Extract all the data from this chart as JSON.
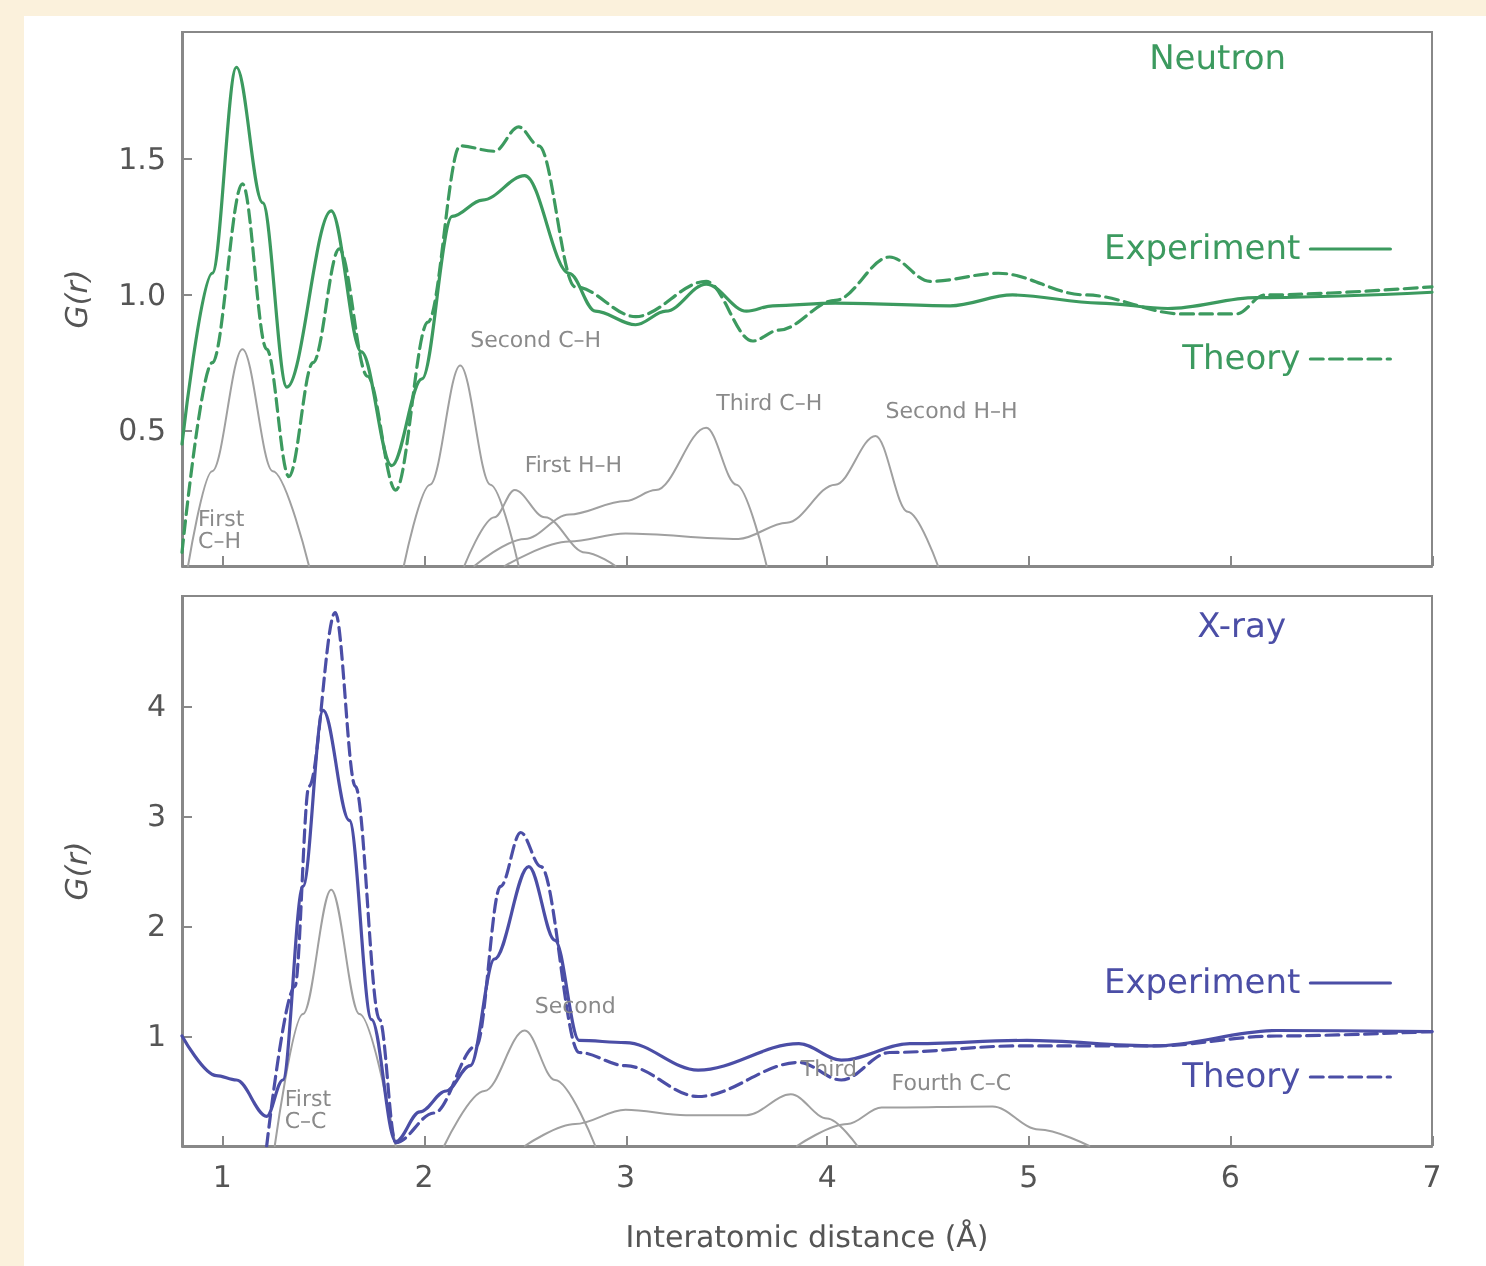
{
  "chart_data": [
    {
      "type": "line",
      "title": "Neutron",
      "ylabel": "G(r)",
      "xlim": [
        0.8,
        7
      ],
      "xticks": [
        1,
        2,
        3,
        4,
        5,
        6,
        7
      ],
      "ylim": [
        0,
        1.97
      ],
      "yticks": [
        0.5,
        {
          "value": 1,
          "label": "1.0"
        },
        1.5
      ],
      "tick_labels": "y",
      "grid": false,
      "legend": "right",
      "marker": "none",
      "series": [
        {
          "name": "Experiment",
          "color": "#3c9a5f",
          "line_style": "solid",
          "x": [
            0.8,
            0.95,
            1.07,
            1.2,
            1.32,
            1.54,
            1.69,
            1.84,
            1.99,
            2.14,
            2.29,
            2.5,
            2.72,
            2.85,
            3.05,
            3.2,
            3.4,
            3.6,
            3.73,
            4.04,
            4.61,
            4.92,
            5.35,
            5.69,
            6.13,
            7.0
          ],
          "values": [
            0.45,
            1.08,
            1.84,
            1.34,
            0.66,
            1.31,
            0.79,
            0.37,
            0.69,
            1.29,
            1.35,
            1.44,
            1.08,
            0.94,
            0.89,
            0.94,
            1.04,
            0.94,
            0.96,
            0.97,
            0.96,
            1.0,
            0.97,
            0.95,
            0.99,
            1.01
          ]
        },
        {
          "name": "Theory",
          "color": "#3c9a5f",
          "line_style": "dashed",
          "x": [
            0.8,
            0.95,
            1.1,
            1.22,
            1.33,
            1.45,
            1.58,
            1.72,
            1.86,
            2.02,
            2.18,
            2.35,
            2.47,
            2.57,
            2.75,
            3.05,
            3.4,
            3.63,
            3.76,
            4.04,
            4.31,
            4.51,
            4.85,
            5.28,
            5.76,
            6.03,
            6.17,
            7.0
          ],
          "values": [
            0.05,
            0.75,
            1.41,
            0.8,
            0.33,
            0.75,
            1.17,
            0.7,
            0.28,
            0.9,
            1.55,
            1.53,
            1.62,
            1.55,
            1.03,
            0.92,
            1.05,
            0.83,
            0.87,
            0.98,
            1.14,
            1.05,
            1.08,
            1.0,
            0.93,
            0.93,
            1.0,
            1.03
          ]
        },
        {
          "color": "#a0a0a0",
          "line_style": "solid",
          "x": [
            0.83,
            0.95,
            1.1,
            1.25,
            1.43
          ],
          "values": [
            0,
            0.35,
            0.8,
            0.35,
            0
          ]
        },
        {
          "color": "#a0a0a0",
          "line_style": "solid",
          "x": [
            1.9,
            2.03,
            2.18,
            2.33,
            2.47
          ],
          "values": [
            0,
            0.3,
            0.74,
            0.3,
            0
          ]
        },
        {
          "color": "#a0a0a0",
          "line_style": "solid",
          "x": [
            2.2,
            2.35,
            2.45,
            2.6,
            2.8,
            2.95
          ],
          "values": [
            0,
            0.18,
            0.28,
            0.18,
            0.05,
            0
          ]
        },
        {
          "color": "#a0a0a0",
          "line_style": "solid",
          "x": [
            2.25,
            2.5,
            2.72,
            3.0,
            3.15,
            3.4,
            3.55,
            3.7
          ],
          "values": [
            0,
            0.1,
            0.19,
            0.24,
            0.28,
            0.51,
            0.3,
            0
          ]
        },
        {
          "color": "#a0a0a0",
          "line_style": "solid",
          "x": [
            2.4,
            2.72,
            3.0,
            3.56,
            3.8,
            4.04,
            4.24,
            4.4,
            4.55
          ],
          "values": [
            0,
            0.09,
            0.12,
            0.1,
            0.16,
            0.3,
            0.48,
            0.2,
            0
          ]
        }
      ],
      "annotations": [
        {
          "text": "First\nC–H",
          "x": 0.83,
          "y": 0
        },
        {
          "text": "Second C–H",
          "x": 2.18,
          "y": 0.74
        },
        {
          "text": "First H–H",
          "x": 2.45,
          "y": 0.28
        },
        {
          "text": "Third C–H",
          "x": 3.4,
          "y": 0.51
        },
        {
          "text": "Second H–H",
          "x": 4.24,
          "y": 0.48
        }
      ]
    },
    {
      "type": "line",
      "title": "X-ray",
      "ylabel": "G(r)",
      "xlabel": "Interatomic distance (Å)",
      "xlim": [
        0.8,
        7
      ],
      "xticks": [
        1,
        2,
        3,
        4,
        5,
        6,
        7
      ],
      "ylim": [
        0,
        5
      ],
      "yticks": [
        1,
        2,
        3,
        4
      ],
      "grid": false,
      "legend": "right",
      "marker": "none",
      "series": [
        {
          "name": "Experiment",
          "color": "#4b4ea6",
          "line_style": "solid",
          "x": [
            0.8,
            0.97,
            1.07,
            1.22,
            1.3,
            1.4,
            1.5,
            1.63,
            1.74,
            1.86,
            1.98,
            2.11,
            2.23,
            2.35,
            2.52,
            2.65,
            2.77,
            3.0,
            3.36,
            3.86,
            4.07,
            4.41,
            4.99,
            5.62,
            6.23,
            7.0
          ],
          "values": [
            1.0,
            0.64,
            0.6,
            0.27,
            0.6,
            2.36,
            3.96,
            2.96,
            1.15,
            0.04,
            0.31,
            0.5,
            0.73,
            1.7,
            2.54,
            1.87,
            0.96,
            0.94,
            0.69,
            0.93,
            0.78,
            0.93,
            0.96,
            0.91,
            1.05,
            1.04
          ]
        },
        {
          "name": "Theory",
          "color": "#4b4ea6",
          "line_style": "dashed",
          "x": [
            1.22,
            1.36,
            1.43,
            1.56,
            1.66,
            1.78,
            1.86,
            2.05,
            2.26,
            2.38,
            2.48,
            2.58,
            2.77,
            3.0,
            3.36,
            3.86,
            4.07,
            4.31,
            4.95,
            5.62,
            6.23,
            7.0
          ],
          "values": [
            0,
            1.45,
            3.27,
            4.85,
            3.27,
            1.15,
            0.03,
            0.3,
            0.91,
            2.36,
            2.85,
            2.54,
            0.85,
            0.73,
            0.45,
            0.76,
            0.6,
            0.85,
            0.91,
            0.91,
            1.0,
            1.04
          ]
        },
        {
          "color": "#a0a0a0",
          "line_style": "solid",
          "x": [
            1.26,
            1.4,
            1.54,
            1.68,
            1.86
          ],
          "values": [
            0,
            1.2,
            2.33,
            1.2,
            0
          ]
        },
        {
          "color": "#a0a0a0",
          "line_style": "solid",
          "x": [
            2.1,
            2.3,
            2.5,
            2.65,
            2.85
          ],
          "values": [
            0,
            0.5,
            1.05,
            0.6,
            0
          ]
        },
        {
          "color": "#a0a0a0",
          "line_style": "solid",
          "x": [
            2.5,
            2.75,
            3.0,
            3.3,
            3.6,
            3.82,
            4.0,
            4.15
          ],
          "values": [
            0,
            0.2,
            0.33,
            0.28,
            0.28,
            0.47,
            0.25,
            0
          ]
        },
        {
          "color": "#a0a0a0",
          "line_style": "solid",
          "x": [
            3.85,
            4.1,
            4.27,
            4.82,
            5.05,
            5.3
          ],
          "values": [
            0,
            0.2,
            0.35,
            0.36,
            0.15,
            0
          ]
        }
      ],
      "annotations": [
        {
          "text": "First\nC–C",
          "x": 1.26,
          "y": 0
        },
        {
          "text": "Second",
          "x": 2.5,
          "y": 1.05
        },
        {
          "text": "Third",
          "x": 3.82,
          "y": 0.47
        },
        {
          "text": "Fourth C–C",
          "x": 4.27,
          "y": 0.35
        }
      ]
    }
  ]
}
